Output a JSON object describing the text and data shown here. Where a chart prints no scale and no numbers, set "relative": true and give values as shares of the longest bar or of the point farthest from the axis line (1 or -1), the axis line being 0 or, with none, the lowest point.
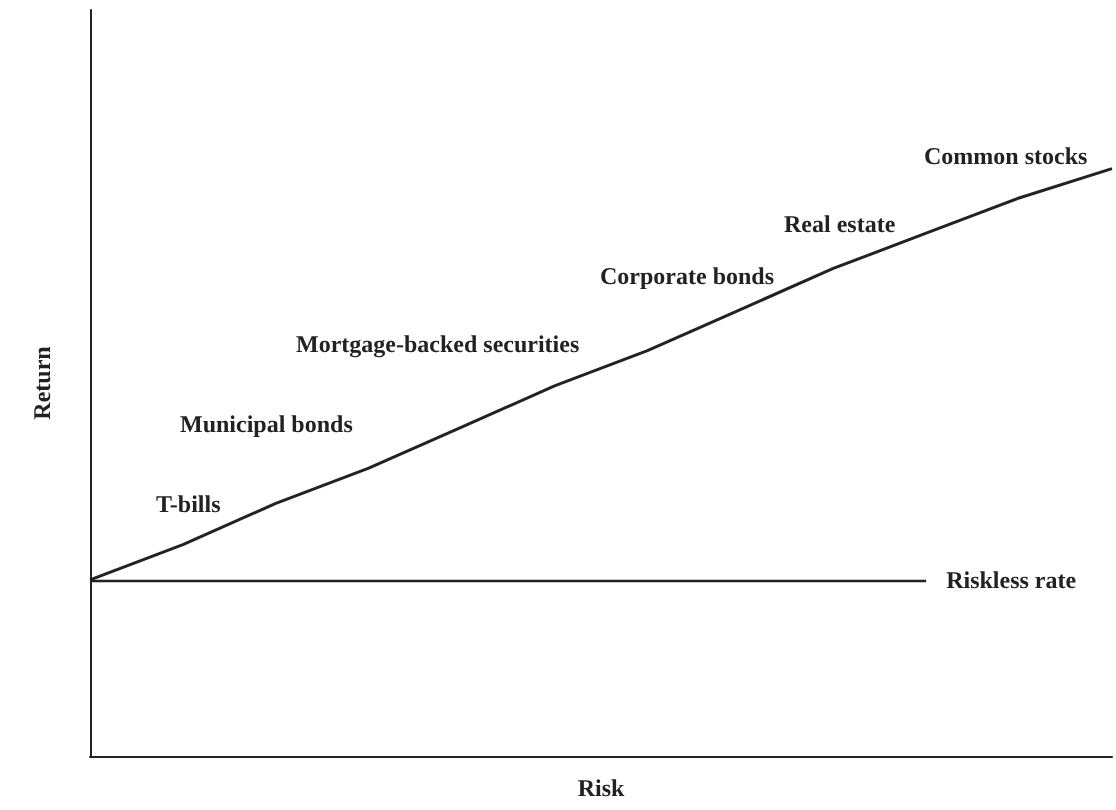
{
  "chart_data": {
    "type": "line",
    "relative": true,
    "xlabel": "Risk",
    "ylabel": "Return",
    "categories": [
      null,
      null,
      null,
      null,
      null,
      null,
      null,
      null,
      null,
      null,
      null,
      null
    ],
    "series": [
      {
        "color": "#222222",
        "values": [
          0.3,
          0.36,
          0.43,
          0.49,
          0.56,
          0.63,
          0.69,
          0.76,
          0.83,
          0.89,
          0.95,
          1
        ]
      }
    ],
    "ref_lines": [
      {
        "axis": "y",
        "value": 0.3,
        "label": "Riskless rate",
        "color": "#222222"
      }
    ],
    "annotations": [
      "T-bills",
      "Municipal bonds",
      "Mortgage-backed securities",
      "Corporate bonds",
      "Real estate",
      "Common stocks"
    ],
    "marker": "none",
    "grid": false,
    "tick_labels": false
  }
}
